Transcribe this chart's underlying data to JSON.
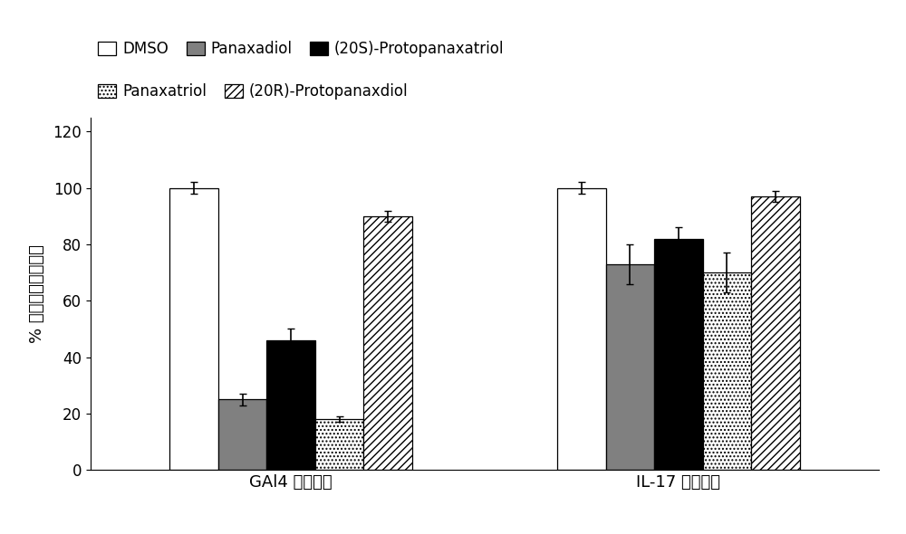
{
  "groups": [
    "GAl4 报告基因",
    "IL-17 报告基因"
  ],
  "series": [
    {
      "label": "DMSO",
      "color": "white",
      "hatch": "",
      "edgecolor": "black",
      "values": [
        100,
        100
      ],
      "errors": [
        2,
        2
      ]
    },
    {
      "label": "Panaxadiol",
      "color": "#808080",
      "hatch": "",
      "edgecolor": "black",
      "values": [
        25,
        73
      ],
      "errors": [
        2,
        7
      ]
    },
    {
      "label": "(20S)-Protopanaxatriol",
      "color": "black",
      "hatch": "",
      "edgecolor": "black",
      "values": [
        46,
        82
      ],
      "errors": [
        4,
        4
      ]
    },
    {
      "label": "Panaxatriol",
      "color": "white",
      "hatch": "....",
      "edgecolor": "black",
      "values": [
        18,
        70
      ],
      "errors": [
        1,
        7
      ]
    },
    {
      "label": "(20R)-Protopanaxdiol",
      "color": "white",
      "hatch": "////",
      "edgecolor": "black",
      "values": [
        90,
        97
      ],
      "errors": [
        2,
        2
      ]
    }
  ],
  "ylabel": "% 报告基因转录活性",
  "ylim": [
    0,
    125
  ],
  "yticks": [
    0,
    20,
    40,
    60,
    80,
    100,
    120
  ],
  "bar_width": 0.055,
  "group_centers": [
    0.28,
    0.72
  ],
  "background_color": "white",
  "fontsize_axis_label": 13,
  "fontsize_ticks": 12,
  "fontsize_legend": 12,
  "fontsize_xticklabel": 13
}
